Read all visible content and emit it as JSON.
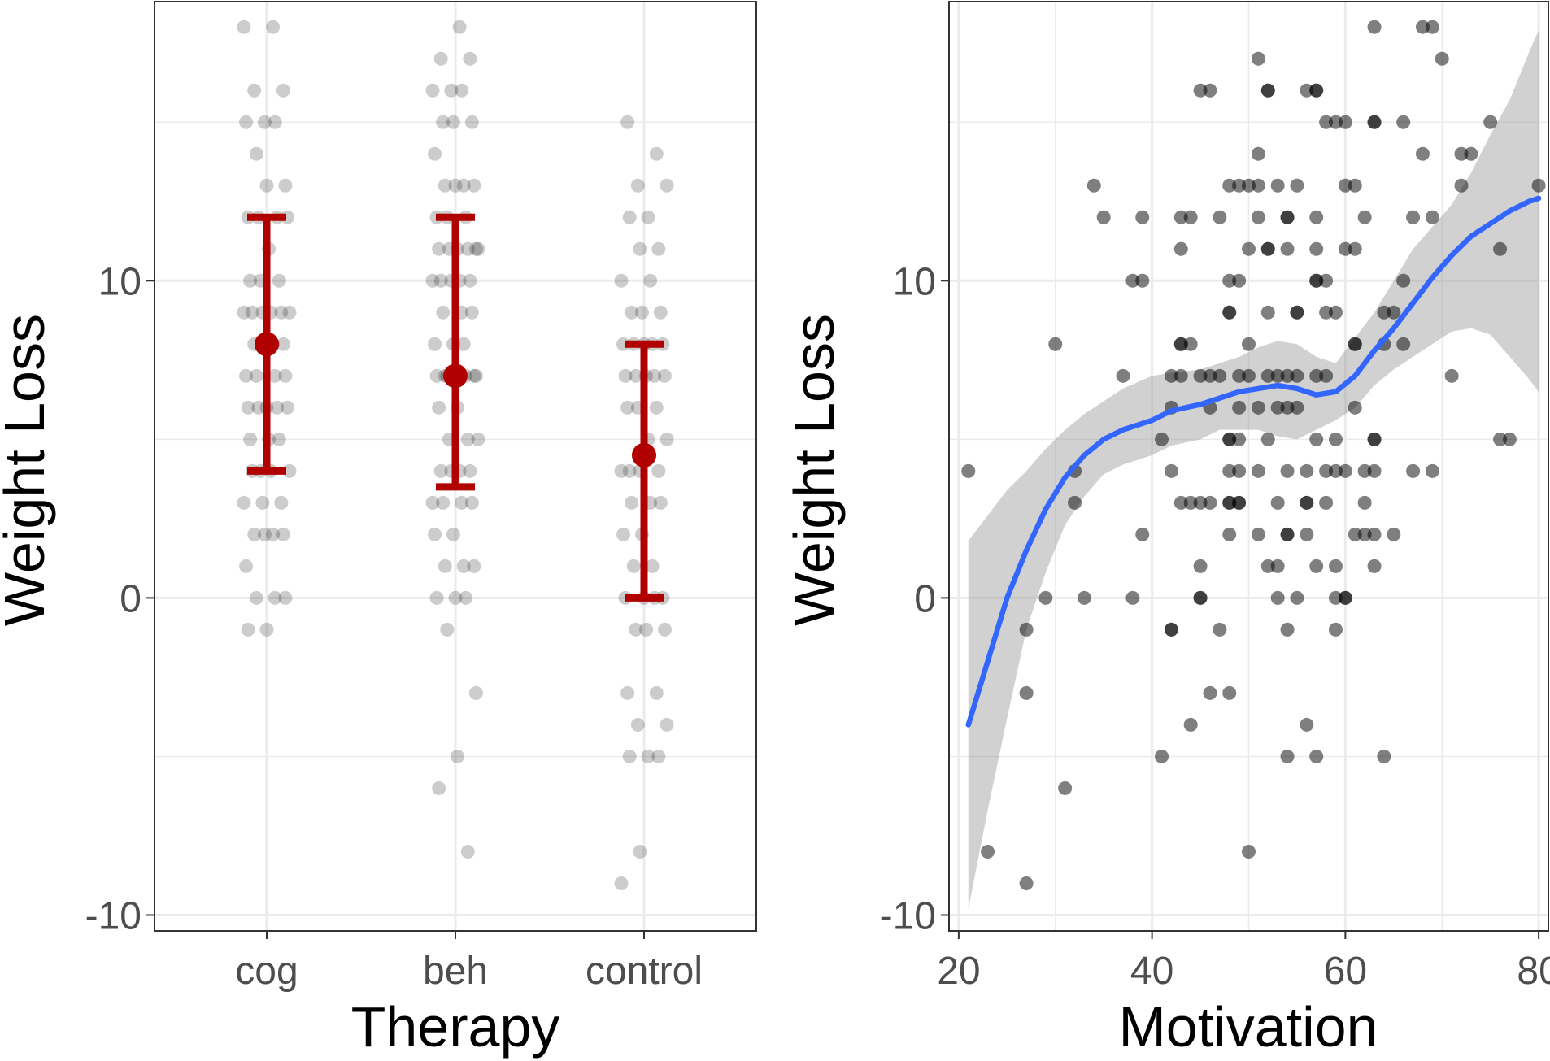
{
  "chart_data": [
    {
      "type": "scatter",
      "xlabel": "Therapy",
      "ylabel": "Weight Loss",
      "categories": [
        "cog",
        "beh",
        "control"
      ],
      "ylim": [
        -10.5,
        18.8
      ],
      "y_ticks": [
        -10,
        0,
        10
      ],
      "y_tick_labels": [
        "-10",
        "0",
        "10"
      ],
      "grid": true,
      "colors": {
        "points": "#000000",
        "summary": "#b00000",
        "grid": "#ebebeb",
        "frame": "#333333"
      },
      "point_alpha": 0.2,
      "summary": [
        {
          "category": "cog",
          "mean": 8,
          "lower": 4,
          "upper": 12
        },
        {
          "category": "beh",
          "mean": 7,
          "lower": 3.5,
          "upper": 12
        },
        {
          "category": "control",
          "mean": 4.5,
          "lower": 0,
          "upper": 8
        }
      ],
      "points": {
        "cog": [
          18,
          18,
          16,
          16,
          15,
          15,
          15,
          14,
          13,
          13,
          12,
          12,
          12,
          12,
          11,
          10,
          10,
          10,
          9,
          9,
          9,
          9,
          9,
          9,
          8,
          8,
          8,
          8,
          7,
          7,
          7,
          7,
          6,
          6,
          6,
          6,
          6,
          5,
          5,
          5,
          4,
          4,
          4,
          4,
          3,
          3,
          3,
          2,
          2,
          2,
          2,
          1,
          0,
          0,
          0,
          -1,
          -1
        ],
        "beh": [
          18,
          17,
          17,
          16,
          16,
          16,
          15,
          15,
          15,
          14,
          13,
          13,
          13,
          13,
          12,
          12,
          12,
          11,
          11,
          11,
          11,
          11,
          11,
          10,
          10,
          10,
          10,
          10,
          9,
          9,
          9,
          8,
          8,
          8,
          7,
          7,
          7,
          7,
          7,
          7,
          7,
          6,
          6,
          5,
          5,
          5,
          4,
          4,
          4,
          4,
          3,
          3,
          3,
          3,
          2,
          2,
          1,
          1,
          1,
          0,
          0,
          0,
          -1,
          -3,
          -5,
          -6,
          -8
        ],
        "control": [
          15,
          14,
          13,
          13,
          12,
          12,
          11,
          11,
          10,
          10,
          9,
          9,
          9,
          8,
          8,
          8,
          8,
          8,
          7,
          7,
          7,
          7,
          7,
          6,
          6,
          6,
          5,
          5,
          4,
          4,
          4,
          4,
          3,
          3,
          3,
          2,
          2,
          1,
          1,
          0,
          0,
          0,
          0,
          -1,
          -1,
          -1,
          -3,
          -3,
          -4,
          -4,
          -5,
          -5,
          -5,
          -8,
          -9
        ]
      }
    },
    {
      "type": "scatter",
      "xlabel": "Motivation",
      "ylabel": "Weight Loss",
      "xlim": [
        19,
        81
      ],
      "ylim": [
        -10.5,
        18.8
      ],
      "x_ticks": [
        20,
        40,
        60,
        80
      ],
      "x_tick_labels": [
        "20",
        "40",
        "60",
        "80"
      ],
      "y_ticks": [
        -10,
        0,
        10
      ],
      "y_tick_labels": [
        "-10",
        "0",
        "10"
      ],
      "grid": true,
      "colors": {
        "points": "#000000",
        "smooth": "#3366ff",
        "band": "#999999",
        "grid": "#ebebeb",
        "frame": "#333333"
      },
      "point_alpha": 0.5,
      "points": [
        [
          21,
          4
        ],
        [
          23,
          -8
        ],
        [
          27,
          -9
        ],
        [
          27,
          -1
        ],
        [
          27,
          -3
        ],
        [
          29,
          0
        ],
        [
          30,
          8
        ],
        [
          31,
          -6
        ],
        [
          32,
          4
        ],
        [
          32,
          3
        ],
        [
          33,
          0
        ],
        [
          34,
          13
        ],
        [
          35,
          12
        ],
        [
          37,
          7
        ],
        [
          38,
          10
        ],
        [
          38,
          0
        ],
        [
          39,
          10
        ],
        [
          39,
          12
        ],
        [
          39,
          2
        ],
        [
          41,
          5
        ],
        [
          41,
          -5
        ],
        [
          42,
          7
        ],
        [
          42,
          6
        ],
        [
          42,
          4
        ],
        [
          42,
          -1
        ],
        [
          42,
          -1
        ],
        [
          43,
          12
        ],
        [
          43,
          11
        ],
        [
          43,
          8
        ],
        [
          43,
          8
        ],
        [
          43,
          7
        ],
        [
          43,
          3
        ],
        [
          44,
          12
        ],
        [
          44,
          8
        ],
        [
          44,
          3
        ],
        [
          44,
          -4
        ],
        [
          45,
          16
        ],
        [
          45,
          7
        ],
        [
          45,
          3
        ],
        [
          45,
          1
        ],
        [
          45,
          0
        ],
        [
          45,
          0
        ],
        [
          46,
          16
        ],
        [
          46,
          7
        ],
        [
          46,
          6
        ],
        [
          46,
          3
        ],
        [
          46,
          -3
        ],
        [
          47,
          12
        ],
        [
          47,
          7
        ],
        [
          47,
          -1
        ],
        [
          48,
          13
        ],
        [
          48,
          10
        ],
        [
          48,
          9
        ],
        [
          48,
          9
        ],
        [
          48,
          5
        ],
        [
          48,
          5
        ],
        [
          48,
          4
        ],
        [
          48,
          3
        ],
        [
          48,
          3
        ],
        [
          48,
          2
        ],
        [
          48,
          -3
        ],
        [
          49,
          13
        ],
        [
          49,
          10
        ],
        [
          49,
          7
        ],
        [
          49,
          6
        ],
        [
          49,
          5
        ],
        [
          49,
          4
        ],
        [
          49,
          3
        ],
        [
          49,
          3
        ],
        [
          50,
          13
        ],
        [
          50,
          11
        ],
        [
          50,
          8
        ],
        [
          50,
          7
        ],
        [
          50,
          -8
        ],
        [
          51,
          17
        ],
        [
          51,
          14
        ],
        [
          51,
          13
        ],
        [
          51,
          12
        ],
        [
          51,
          6
        ],
        [
          51,
          4
        ],
        [
          51,
          2
        ],
        [
          52,
          16
        ],
        [
          52,
          16
        ],
        [
          52,
          11
        ],
        [
          52,
          11
        ],
        [
          52,
          9
        ],
        [
          52,
          7
        ],
        [
          52,
          5
        ],
        [
          52,
          1
        ],
        [
          53,
          13
        ],
        [
          53,
          7
        ],
        [
          53,
          6
        ],
        [
          53,
          3
        ],
        [
          53,
          1
        ],
        [
          53,
          0
        ],
        [
          54,
          12
        ],
        [
          54,
          12
        ],
        [
          54,
          11
        ],
        [
          54,
          7
        ],
        [
          54,
          6
        ],
        [
          54,
          4
        ],
        [
          54,
          2
        ],
        [
          54,
          2
        ],
        [
          54,
          -1
        ],
        [
          54,
          -5
        ],
        [
          55,
          13
        ],
        [
          55,
          9
        ],
        [
          55,
          9
        ],
        [
          55,
          7
        ],
        [
          55,
          6
        ],
        [
          55,
          0
        ],
        [
          56,
          16
        ],
        [
          56,
          4
        ],
        [
          56,
          3
        ],
        [
          56,
          3
        ],
        [
          56,
          2
        ],
        [
          56,
          -4
        ],
        [
          57,
          16
        ],
        [
          57,
          16
        ],
        [
          57,
          12
        ],
        [
          57,
          11
        ],
        [
          57,
          10
        ],
        [
          57,
          10
        ],
        [
          57,
          7
        ],
        [
          57,
          5
        ],
        [
          57,
          1
        ],
        [
          57,
          -5
        ],
        [
          58,
          15
        ],
        [
          58,
          10
        ],
        [
          58,
          9
        ],
        [
          58,
          7
        ],
        [
          58,
          4
        ],
        [
          58,
          3
        ],
        [
          59,
          15
        ],
        [
          59,
          9
        ],
        [
          59,
          5
        ],
        [
          59,
          4
        ],
        [
          59,
          1
        ],
        [
          59,
          0
        ],
        [
          59,
          -1
        ],
        [
          60,
          15
        ],
        [
          60,
          13
        ],
        [
          60,
          11
        ],
        [
          60,
          4
        ],
        [
          60,
          0
        ],
        [
          60,
          0
        ],
        [
          61,
          13
        ],
        [
          61,
          11
        ],
        [
          61,
          8
        ],
        [
          61,
          8
        ],
        [
          61,
          6
        ],
        [
          61,
          2
        ],
        [
          62,
          12
        ],
        [
          62,
          4
        ],
        [
          62,
          3
        ],
        [
          62,
          2
        ],
        [
          63,
          18
        ],
        [
          63,
          15
        ],
        [
          63,
          15
        ],
        [
          63,
          5
        ],
        [
          63,
          5
        ],
        [
          63,
          4
        ],
        [
          63,
          2
        ],
        [
          63,
          1
        ],
        [
          64,
          9
        ],
        [
          64,
          8
        ],
        [
          64,
          -5
        ],
        [
          65,
          9
        ],
        [
          65,
          2
        ],
        [
          66,
          15
        ],
        [
          66,
          10
        ],
        [
          66,
          8
        ],
        [
          67,
          12
        ],
        [
          67,
          4
        ],
        [
          68,
          18
        ],
        [
          68,
          14
        ],
        [
          69,
          18
        ],
        [
          69,
          12
        ],
        [
          69,
          4
        ],
        [
          70,
          17
        ],
        [
          71,
          7
        ],
        [
          72,
          14
        ],
        [
          72,
          13
        ],
        [
          73,
          14
        ],
        [
          75,
          15
        ],
        [
          76,
          11
        ],
        [
          76,
          5
        ],
        [
          77,
          5
        ],
        [
          80,
          13
        ]
      ],
      "smooth_line": [
        [
          21,
          -4
        ],
        [
          23,
          -2
        ],
        [
          25,
          0
        ],
        [
          27,
          1.5
        ],
        [
          29,
          2.8
        ],
        [
          31,
          3.8
        ],
        [
          33,
          4.5
        ],
        [
          35,
          5
        ],
        [
          37,
          5.3
        ],
        [
          40,
          5.6
        ],
        [
          42,
          5.9
        ],
        [
          45,
          6.1
        ],
        [
          47,
          6.3
        ],
        [
          49,
          6.5
        ],
        [
          51,
          6.6
        ],
        [
          53,
          6.7
        ],
        [
          55,
          6.6
        ],
        [
          57,
          6.4
        ],
        [
          59,
          6.5
        ],
        [
          61,
          7
        ],
        [
          63,
          7.8
        ],
        [
          65,
          8.5
        ],
        [
          67,
          9.3
        ],
        [
          69,
          10.1
        ],
        [
          71,
          10.8
        ],
        [
          73,
          11.4
        ],
        [
          75,
          11.8
        ],
        [
          77,
          12.2
        ],
        [
          79,
          12.5
        ],
        [
          80,
          12.6
        ]
      ],
      "band_upper": [
        [
          21,
          1.8
        ],
        [
          23,
          2.6
        ],
        [
          25,
          3.4
        ],
        [
          27,
          4
        ],
        [
          29,
          4.7
        ],
        [
          31,
          5.3
        ],
        [
          33,
          5.8
        ],
        [
          35,
          6.2
        ],
        [
          37,
          6.6
        ],
        [
          40,
          7
        ],
        [
          42,
          7.1
        ],
        [
          45,
          7.2
        ],
        [
          47,
          7.4
        ],
        [
          49,
          7.6
        ],
        [
          51,
          7.9
        ],
        [
          53,
          8.1
        ],
        [
          55,
          8
        ],
        [
          57,
          7.6
        ],
        [
          59,
          7.4
        ],
        [
          61,
          8.2
        ],
        [
          63,
          9
        ],
        [
          65,
          10
        ],
        [
          67,
          11
        ],
        [
          69,
          11.7
        ],
        [
          71,
          12.4
        ],
        [
          73,
          13.4
        ],
        [
          75,
          14.6
        ],
        [
          77,
          15.7
        ],
        [
          79,
          17.2
        ],
        [
          80,
          17.9
        ]
      ],
      "band_lower": [
        [
          21,
          -9.8
        ],
        [
          23,
          -6.7
        ],
        [
          25,
          -3.8
        ],
        [
          27,
          -1
        ],
        [
          29,
          0.8
        ],
        [
          31,
          2.3
        ],
        [
          33,
          3.2
        ],
        [
          35,
          3.9
        ],
        [
          37,
          4.2
        ],
        [
          40,
          4.5
        ],
        [
          42,
          4.8
        ],
        [
          45,
          5
        ],
        [
          47,
          5.3
        ],
        [
          49,
          5.3
        ],
        [
          51,
          5.3
        ],
        [
          53,
          5.1
        ],
        [
          55,
          5
        ],
        [
          57,
          5.3
        ],
        [
          59,
          5.6
        ],
        [
          61,
          6
        ],
        [
          63,
          6.7
        ],
        [
          65,
          7.2
        ],
        [
          67,
          7.6
        ],
        [
          69,
          8
        ],
        [
          71,
          8.4
        ],
        [
          73,
          8.5
        ],
        [
          75,
          8.3
        ],
        [
          77,
          7.6
        ],
        [
          79,
          6.9
        ],
        [
          80,
          6.5
        ]
      ]
    }
  ]
}
